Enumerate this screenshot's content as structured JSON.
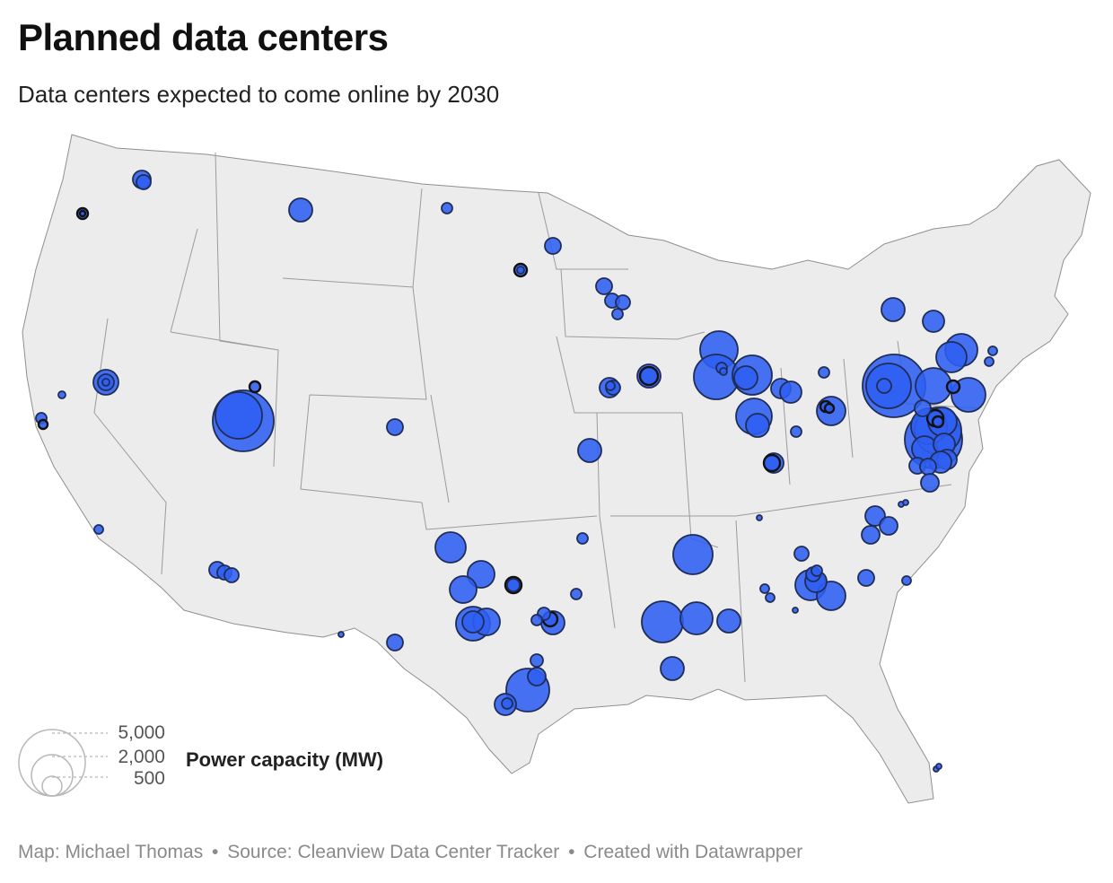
{
  "header": {
    "title": "Planned data centers",
    "subtitle": "Data centers expected to come online by 2030"
  },
  "legend": {
    "title": "Power capacity (MW)",
    "values": [
      "5,000",
      "2,000",
      "500"
    ]
  },
  "footer": {
    "map_credit": "Map: Michael Thomas",
    "source": "Source: Cleanview Data Center Tracker",
    "created": "Created with Datawrapper",
    "separator": "•"
  },
  "colors": {
    "bubble_fill": "#2f5ff2",
    "bubble_stroke": "#1f2d57",
    "land": "#ececec"
  }
}
